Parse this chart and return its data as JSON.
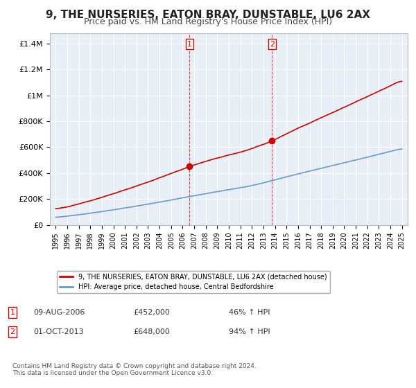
{
  "title": "9, THE NURSERIES, EATON BRAY, DUNSTABLE, LU6 2AX",
  "subtitle": "Price paid vs. HM Land Registry's House Price Index (HPI)",
  "title_fontsize": 11,
  "subtitle_fontsize": 9,
  "background_color": "#ffffff",
  "plot_bg_color": "#e8eef5",
  "grid_color": "#ffffff",
  "red_line_color": "#cc0000",
  "blue_line_color": "#6699cc",
  "transaction1": {
    "date_x": 2006.6,
    "price": 452000,
    "label": "1"
  },
  "transaction2": {
    "date_x": 2013.75,
    "price": 648000,
    "label": "2"
  },
  "dashed_line_color": "#cc0000",
  "ylabel_items": [
    "£0",
    "£200K",
    "£400K",
    "£600K",
    "£800K",
    "£1M",
    "£1.2M",
    "£1.4M"
  ],
  "ylim": [
    0,
    1480000
  ],
  "xlim_start": 1994.5,
  "xlim_end": 2025.5,
  "legend_entry1": "9, THE NURSERIES, EATON BRAY, DUNSTABLE, LU6 2AX (detached house)",
  "legend_entry2": "HPI: Average price, detached house, Central Bedfordshire",
  "annotation1_date": "09-AUG-2006",
  "annotation1_price": "£452,000",
  "annotation1_hpi": "46% ↑ HPI",
  "annotation2_date": "01-OCT-2013",
  "annotation2_price": "£648,000",
  "annotation2_hpi": "94% ↑ HPI",
  "footer": "Contains HM Land Registry data © Crown copyright and database right 2024.\nThis data is licensed under the Open Government Licence v3.0."
}
